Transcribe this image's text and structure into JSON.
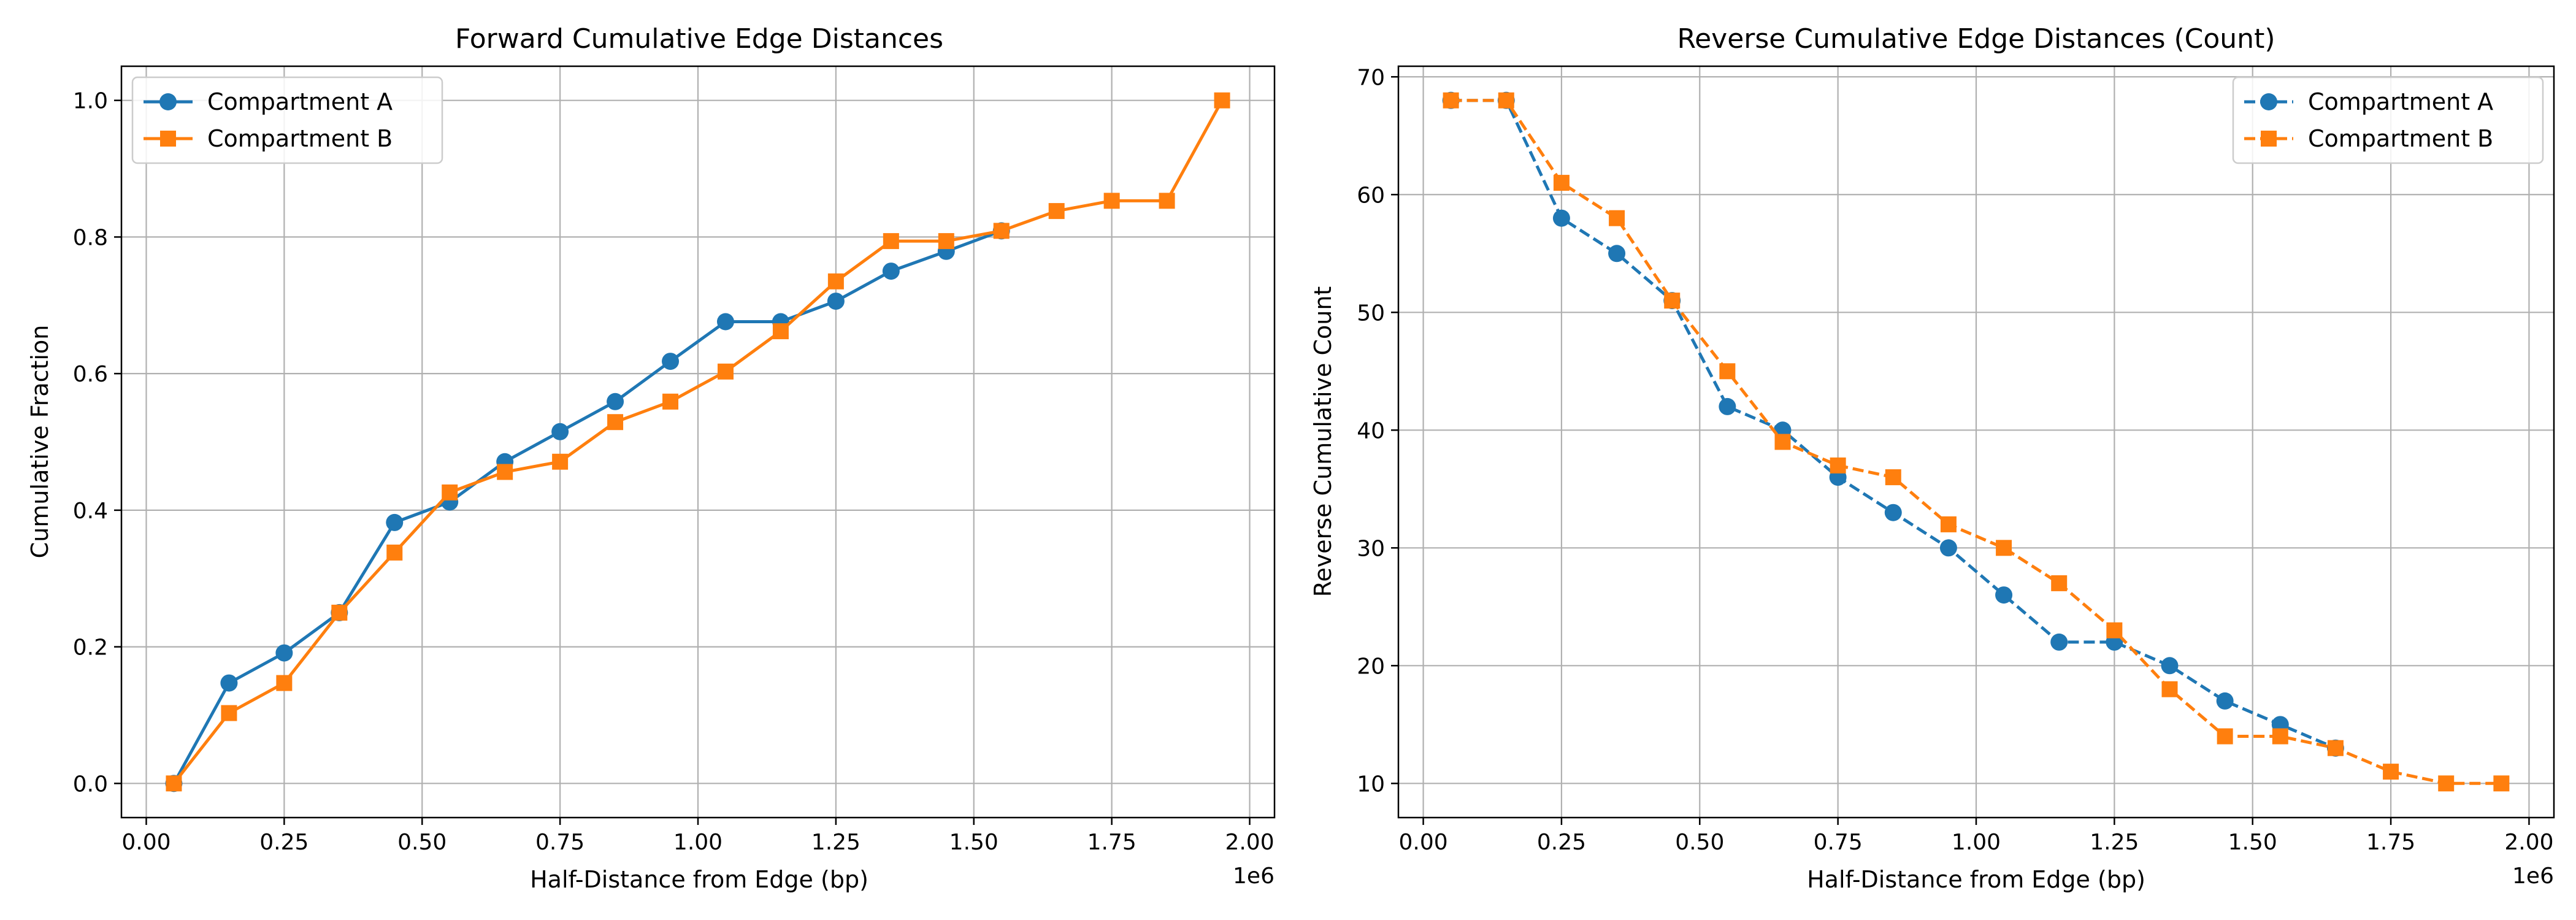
{
  "chart_data": [
    {
      "type": "line",
      "title": "Forward Cumulative Edge Distances",
      "xlabel": "Half-Distance from Edge (bp)",
      "ylabel": "Cumulative Fraction",
      "x_offset_label": "1e6",
      "xlim": [
        -0.045,
        2.045
      ],
      "ylim": [
        -0.05,
        1.05
      ],
      "xticks": [
        0.0,
        0.25,
        0.5,
        0.75,
        1.0,
        1.25,
        1.5,
        1.75,
        2.0
      ],
      "xtick_labels": [
        "0.00",
        "0.25",
        "0.50",
        "0.75",
        "1.00",
        "1.25",
        "1.50",
        "1.75",
        "2.00"
      ],
      "yticks": [
        0.0,
        0.2,
        0.4,
        0.6,
        0.8,
        1.0
      ],
      "ytick_labels": [
        "0.0",
        "0.2",
        "0.4",
        "0.6",
        "0.8",
        "1.0"
      ],
      "grid": true,
      "legend_position": "top-left",
      "series": [
        {
          "name": "Compartment A",
          "color": "#1f77b4",
          "marker": "circle",
          "linestyle": "solid",
          "x": [
            0.05,
            0.15,
            0.25,
            0.35,
            0.45,
            0.55,
            0.65,
            0.75,
            0.85,
            0.95,
            1.05,
            1.15,
            1.25,
            1.35,
            1.45,
            1.55
          ],
          "y": [
            0.0,
            0.147,
            0.191,
            0.25,
            0.382,
            0.412,
            0.471,
            0.515,
            0.559,
            0.618,
            0.676,
            0.676,
            0.706,
            0.75,
            0.779,
            0.809
          ]
        },
        {
          "name": "Compartment B",
          "color": "#ff7f0e",
          "marker": "square",
          "linestyle": "solid",
          "x": [
            0.05,
            0.15,
            0.25,
            0.35,
            0.45,
            0.55,
            0.65,
            0.75,
            0.85,
            0.95,
            1.05,
            1.15,
            1.25,
            1.35,
            1.45,
            1.55,
            1.65,
            1.75,
            1.85,
            1.95
          ],
          "y": [
            0.0,
            0.103,
            0.147,
            0.25,
            0.338,
            0.426,
            0.456,
            0.471,
            0.529,
            0.559,
            0.603,
            0.662,
            0.735,
            0.794,
            0.794,
            0.809,
            0.838,
            0.853,
            0.853,
            1.0
          ]
        }
      ]
    },
    {
      "type": "line",
      "title": "Reverse Cumulative Edge Distances (Count)",
      "xlabel": "Half-Distance from Edge (bp)",
      "ylabel": "Reverse Cumulative Count",
      "x_offset_label": "1e6",
      "xlim": [
        -0.045,
        2.045
      ],
      "ylim": [
        7.1,
        70.9
      ],
      "xticks": [
        0.0,
        0.25,
        0.5,
        0.75,
        1.0,
        1.25,
        1.5,
        1.75,
        2.0
      ],
      "xtick_labels": [
        "0.00",
        "0.25",
        "0.50",
        "0.75",
        "1.00",
        "1.25",
        "1.50",
        "1.75",
        "2.00"
      ],
      "yticks": [
        10,
        20,
        30,
        40,
        50,
        60,
        70
      ],
      "ytick_labels": [
        "10",
        "20",
        "30",
        "40",
        "50",
        "60",
        "70"
      ],
      "grid": true,
      "legend_position": "top-right",
      "series": [
        {
          "name": "Compartment A",
          "color": "#1f77b4",
          "marker": "circle",
          "linestyle": "dashed",
          "x": [
            0.05,
            0.15,
            0.25,
            0.35,
            0.45,
            0.55,
            0.65,
            0.75,
            0.85,
            0.95,
            1.05,
            1.15,
            1.25,
            1.35,
            1.45,
            1.55,
            1.65
          ],
          "y": [
            68,
            68,
            58,
            55,
            51,
            42,
            40,
            36,
            33,
            30,
            26,
            22,
            22,
            20,
            17,
            15,
            13
          ]
        },
        {
          "name": "Compartment B",
          "color": "#ff7f0e",
          "marker": "square",
          "linestyle": "dashed",
          "x": [
            0.05,
            0.15,
            0.25,
            0.35,
            0.45,
            0.55,
            0.65,
            0.75,
            0.85,
            0.95,
            1.05,
            1.15,
            1.25,
            1.35,
            1.45,
            1.55,
            1.65,
            1.75,
            1.85,
            1.95
          ],
          "y": [
            68,
            68,
            61,
            58,
            51,
            45,
            39,
            37,
            36,
            32,
            30,
            27,
            23,
            18,
            14,
            14,
            13,
            11,
            10,
            10
          ]
        }
      ]
    }
  ]
}
